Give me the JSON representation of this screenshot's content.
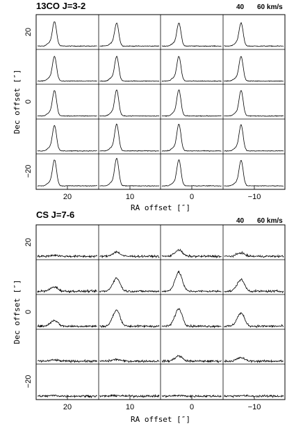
{
  "chart_data": [
    {
      "type": "line",
      "title": "13CO J=3-2",
      "velocity_label_1": "40",
      "velocity_label_2": "60 km/s",
      "xlabel": "RA offset  [″]",
      "ylabel": "Dec offset  [″]",
      "ra_ticks": [
        20,
        10,
        0,
        -10
      ],
      "ra_tick_labels": [
        "20",
        "10",
        "0",
        "−10"
      ],
      "dec_ticks": [
        20,
        0,
        -20
      ],
      "dec_tick_labels": [
        "20",
        "0",
        "−20"
      ],
      "grid_ra_offsets": [
        20,
        10,
        0,
        -10
      ],
      "grid_dec_offsets": [
        20,
        10,
        0,
        -10,
        -20
      ],
      "velocity_axis_kms": [
        30,
        65
      ],
      "spectra_peak_matrix": [
        [
          0.85,
          0.8,
          0.8,
          0.8
        ],
        [
          0.85,
          0.85,
          0.85,
          0.85
        ],
        [
          0.88,
          0.9,
          0.9,
          0.88
        ],
        [
          0.88,
          0.92,
          0.92,
          0.9
        ],
        [
          0.9,
          0.95,
          0.9,
          0.88
        ]
      ],
      "line_center_kms": 40,
      "line_width_kms": 1.2
    },
    {
      "type": "line",
      "title": "CS J=7-6",
      "velocity_label_1": "40",
      "velocity_label_2": "60 km/s",
      "xlabel": "RA offset  [″]",
      "ylabel": "Dec offset  [″]",
      "ra_ticks": [
        20,
        10,
        0,
        -10
      ],
      "ra_tick_labels": [
        "20",
        "10",
        "0",
        "−10"
      ],
      "dec_ticks": [
        20,
        0,
        -20
      ],
      "dec_tick_labels": [
        "20",
        "0",
        "−20"
      ],
      "grid_ra_offsets": [
        20,
        10,
        0,
        -10
      ],
      "grid_dec_offsets": [
        20,
        10,
        0,
        -10,
        -20
      ],
      "velocity_axis_kms": [
        30,
        65
      ],
      "spectra_peak_matrix": [
        [
          0.04,
          0.15,
          0.22,
          0.12
        ],
        [
          0.15,
          0.45,
          0.65,
          0.4
        ],
        [
          0.2,
          0.55,
          0.6,
          0.45
        ],
        [
          0.04,
          0.06,
          0.18,
          0.12
        ],
        [
          0.02,
          0.02,
          0.02,
          0.02
        ]
      ],
      "line_center_kms": 40,
      "line_width_kms": 2.0
    }
  ]
}
